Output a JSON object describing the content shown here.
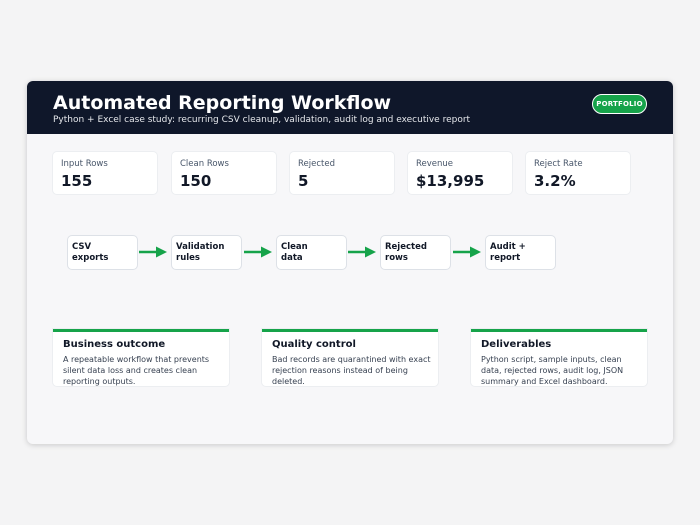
{
  "header": {
    "title": "Automated Reporting Workflow",
    "subtitle": "Python + Excel case study: recurring CSV cleanup, validation, audit log and executive report",
    "badge": "PORTFOLIO"
  },
  "stats": [
    {
      "label": "Input Rows",
      "value": "155"
    },
    {
      "label": "Clean Rows",
      "value": "150"
    },
    {
      "label": "Rejected",
      "value": "5"
    },
    {
      "label": "Revenue",
      "value": "$13,995"
    },
    {
      "label": "Reject Rate",
      "value": "3.2%"
    }
  ],
  "workflow": {
    "steps": [
      {
        "line1": "CSV",
        "line2": "exports"
      },
      {
        "line1": "Validation",
        "line2": "rules"
      },
      {
        "line1": "Clean",
        "line2": "data"
      },
      {
        "line1": "Rejected",
        "line2": "rows"
      },
      {
        "line1": "Audit +",
        "line2": "report"
      }
    ],
    "arrow_icon": "arrow-right-icon"
  },
  "cards": [
    {
      "title": "Business outcome",
      "lines": [
        "A repeatable workflow that prevents",
        "silent data loss and creates clean",
        "reporting outputs."
      ]
    },
    {
      "title": "Quality control",
      "lines": [
        "Bad records are quarantined with exact",
        "rejection reasons instead of being",
        "deleted."
      ]
    },
    {
      "title": "Deliverables",
      "lines": [
        "Python script, sample inputs, clean",
        "data, rejected rows, audit log, JSON",
        "summary and Excel dashboard."
      ]
    }
  ],
  "colors": {
    "header_bg": "#0f172a",
    "accent": "#16a34a",
    "page_bg": "#f4f4f5"
  }
}
